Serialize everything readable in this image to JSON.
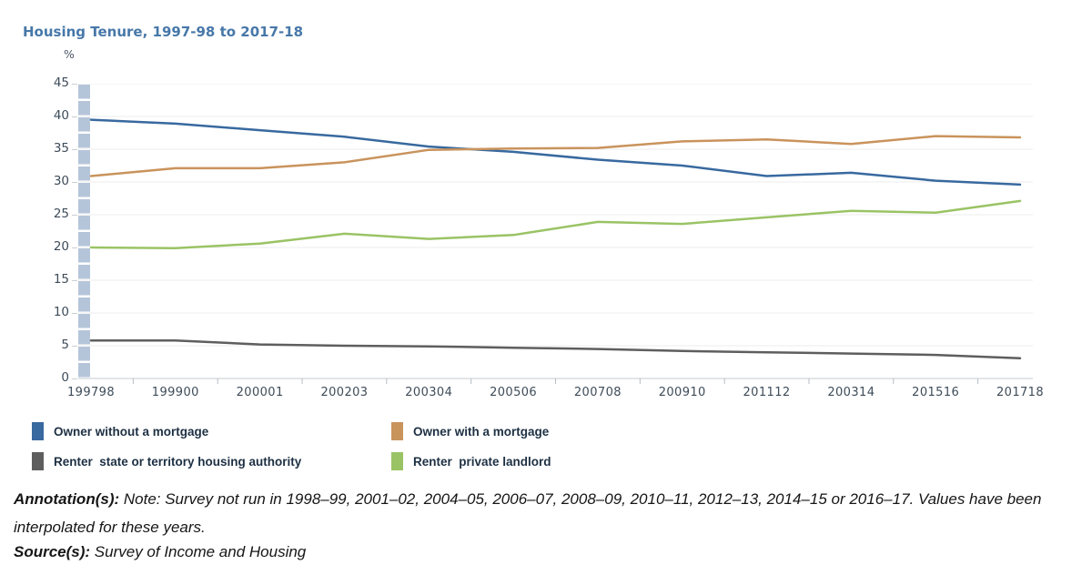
{
  "chart_data": {
    "type": "line",
    "title": "Housing Tenure, 1997-98 to 2017-18",
    "ylabel": "%",
    "categories": [
      "199798",
      "199900",
      "200001",
      "200203",
      "200304",
      "200506",
      "200708",
      "200910",
      "201112",
      "200314",
      "201516",
      "201718"
    ],
    "series": [
      {
        "name": "Owner without a mortgage",
        "color": "#38699f",
        "values": [
          39.5,
          38.9,
          37.9,
          36.9,
          35.4,
          34.6,
          33.4,
          32.5,
          30.9,
          31.4,
          30.2,
          29.6
        ]
      },
      {
        "name": "Owner with a mortgage",
        "color": "#c9935c",
        "values": [
          30.9,
          32.1,
          32.1,
          33.0,
          34.9,
          35.1,
          35.2,
          36.2,
          36.5,
          35.8,
          37.0,
          36.8
        ]
      },
      {
        "name": "Renter  state or territory housing authority",
        "color": "#5e5e5e",
        "values": [
          5.8,
          5.8,
          5.2,
          5.0,
          4.9,
          4.7,
          4.5,
          4.2,
          4.0,
          3.8,
          3.6,
          3.1
        ]
      },
      {
        "name": "Renter  private landlord",
        "color": "#9ac365",
        "values": [
          20.0,
          19.9,
          20.6,
          22.1,
          21.3,
          21.9,
          23.9,
          23.6,
          24.6,
          25.6,
          25.3,
          27.1
        ]
      }
    ],
    "ylim": [
      0,
      45
    ],
    "y_tick_step": 5,
    "grid": "horizontal",
    "legend_position": "bottom",
    "highlight_band": {
      "category_index": 0,
      "color": "#b5c5d9"
    },
    "colors": {
      "grid": "#ededed",
      "axis_line": "#c5cbd1",
      "tick": "#b6bdc4",
      "axis_text": "#3e4c59",
      "title": "#4778a9"
    }
  },
  "annotation": {
    "label": "Annotation(s):",
    "text": " Note: Survey not run in 1998–99, 2001–02, 2004–05, 2006–07, 2008–09, 2010–11, 2012–13, 2014–15 or 2016–17. Values have been interpolated for these years."
  },
  "source": {
    "label": "Source(s):",
    "text": " Survey of Income and Housing"
  }
}
